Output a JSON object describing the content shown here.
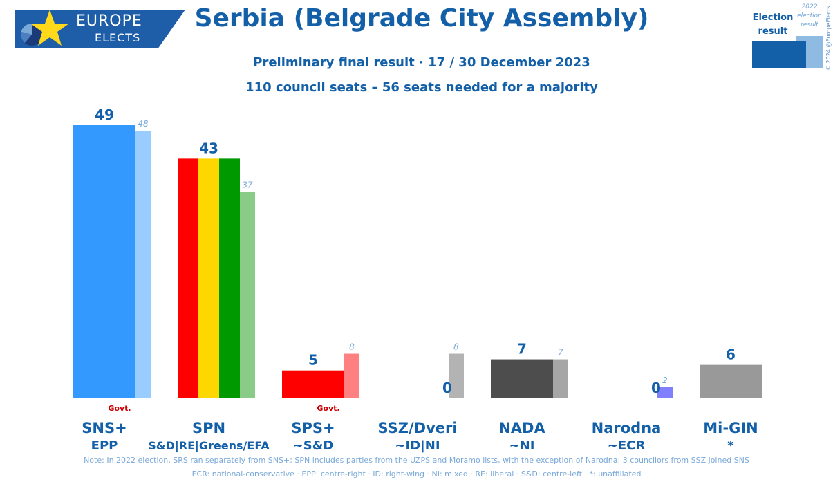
{
  "logo": {
    "line1": "EUROPE",
    "line2": "ELECTS"
  },
  "title": "Serbia (Belgrade City Assembly)",
  "subtitle": "Preliminary final result · 17 / 30 December 2023",
  "subtitle2": "110 council seats – 56 seats needed for a majority",
  "legend": {
    "current_line1": "Election",
    "current_line2": "result",
    "previous_line1": "2022",
    "previous_line2": "election",
    "previous_line3": "result"
  },
  "copyright": "© 2024 @EuropeElects",
  "chart_data": {
    "type": "bar",
    "categories": [
      "SNS+",
      "SPN",
      "SPS+",
      "SSZ/Dveri",
      "NADA",
      "Narodna",
      "Mi-GIN"
    ],
    "groups": [
      "EPP",
      "S&D|RE|Greens/EFA",
      "~S&D",
      "~ID|NI",
      "~NI",
      "~ECR",
      "*"
    ],
    "series": [
      {
        "name": "Election result",
        "values": [
          49,
          43,
          5,
          0,
          7,
          0,
          6
        ]
      },
      {
        "name": "2022 election result",
        "values": [
          48,
          37,
          8,
          8,
          7,
          2,
          null
        ]
      }
    ],
    "colors": {
      "current": [
        "#3399ff",
        "stripes",
        "#ff0000",
        "#808080",
        "#4d4d4d",
        "#8080ff",
        "#999999"
      ],
      "previous": [
        "#99ccff",
        "#88cc88",
        "#ff8080",
        "#b3b3b3",
        "#a6a6a6",
        "#8080ff",
        null
      ],
      "spn_stripes": [
        "#ff0000",
        "#ffd700",
        "#009900"
      ]
    },
    "govt_label": "Govt.",
    "govt_parties": [
      "SNS+",
      "SPS+"
    ],
    "ylim": [
      0,
      49
    ],
    "grid": false
  },
  "notes": {
    "line1": "Note: In 2022 election, SRS ran separately from SNS+; SPN includes parties from the UZPS and Moramo lists, with the exception of Narodna; 3 councilors from SSZ joined SNS",
    "line2": "ECR: national-conservative · EPP: centre-right · ID: right-wing · NI: mixed · RE: liberal · S&D: centre-left · *: unaffiliated"
  }
}
